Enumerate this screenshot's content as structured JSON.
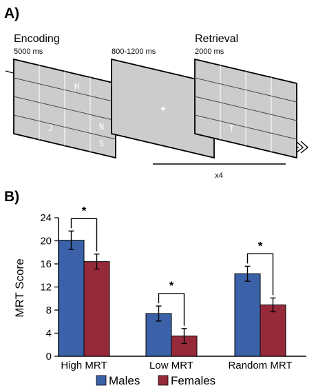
{
  "panel_a": {
    "label": "A)",
    "encoding": {
      "title": "Encoding",
      "duration": "5000 ms",
      "letters": [
        "H",
        "J",
        "N",
        "S"
      ]
    },
    "fixation": {
      "duration": "800-1200 ms",
      "symbol": "+"
    },
    "retrieval": {
      "title": "Retrieval",
      "duration": "2000 ms",
      "letters": [
        "T"
      ]
    },
    "repeat_label": "x4"
  },
  "panel_b": {
    "label": "B)",
    "significance_marker": "*"
  },
  "colors": {
    "males": "#3b62a8",
    "females": "#962a3a",
    "screen": "#cccccc"
  },
  "chart_data": {
    "type": "bar",
    "categories": [
      "High MRT",
      "Low MRT",
      "Random MRT"
    ],
    "series": [
      {
        "name": "Males",
        "values": [
          20.1,
          7.4,
          14.3
        ],
        "errors": [
          1.6,
          1.3,
          1.3
        ]
      },
      {
        "name": "Females",
        "values": [
          16.4,
          3.5,
          8.9
        ],
        "errors": [
          1.3,
          1.3,
          1.2
        ]
      }
    ],
    "ylabel": "MRT Score",
    "ylim": [
      0,
      24
    ],
    "yticks": [
      "0",
      "4",
      "8",
      "12",
      "16",
      "20",
      "24"
    ],
    "legend_placement": "bottom",
    "grid": false
  }
}
